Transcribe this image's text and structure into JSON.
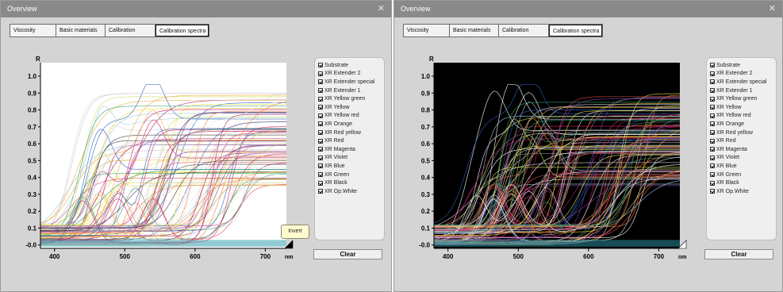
{
  "windows": [
    {
      "title": "Overview",
      "theme": "light",
      "tabs": [
        "Viscosity",
        "Basic materials",
        "Calibration",
        "Calibration spectra"
      ],
      "active_tab": "Calibration spectra",
      "legend_items": [
        "Substrate",
        "XR Extender 2",
        "XR Extender special",
        "XR Extender 1",
        "XR Yellow green",
        "XR Yellow",
        "XR Yellow red",
        "XR Orange",
        "XR Red yellow",
        "XR Red",
        "XR Magenta",
        "XR Violet",
        "XR Blue",
        "XR Green",
        "XR  Black",
        "XR Op.White"
      ],
      "clear_label": "Clear",
      "tooltip": "Invert",
      "close_glyph": "✕"
    },
    {
      "title": "Overview",
      "theme": "dark",
      "tabs": [
        "Viscosity",
        "Basic materials",
        "Calibration",
        "Calibration spectra"
      ],
      "active_tab": "Calibration spectra",
      "legend_items": [
        "Substrate",
        "XR Extender 2",
        "XR Extender special",
        "XR Extender 1",
        "XR Yellow green",
        "XR Yellow",
        "XR Yellow red",
        "XR Orange",
        "XR Red yellow",
        "XR Red",
        "XR Magenta",
        "XR Violet",
        "XR Blue",
        "XR Green",
        "XR  Black",
        "XR Op.White"
      ],
      "clear_label": "Clear",
      "close_glyph": "✕"
    }
  ],
  "chart_data": [
    {
      "type": "line",
      "title": "",
      "ylabel": "R",
      "xlabel": "nm",
      "xlim": [
        380,
        730
      ],
      "ylim": [
        -0.02,
        1.08
      ],
      "x_ticks": [
        "400",
        "500",
        "600",
        "700"
      ],
      "y_ticks": [
        "1.0",
        "0.9",
        "0.8",
        "0.7",
        "0.6",
        "0.5",
        "0.4",
        "0.3",
        "0.2",
        "0.1",
        "-0.0"
      ],
      "background": "#ffffff",
      "series_colors": [
        "#c8c8c8",
        "#d8d8d8",
        "#e0e0e0",
        "#9cc8d8",
        "#d4dc60",
        "#f0e040",
        "#f0b040",
        "#f08040",
        "#e05050",
        "#d02060",
        "#b02070",
        "#8040a0",
        "#3060c0",
        "#30a070",
        "#404040",
        "#f0f0f0"
      ]
    },
    {
      "type": "line",
      "title": "",
      "ylabel": "R",
      "xlabel": "nm",
      "xlim": [
        380,
        730
      ],
      "ylim": [
        -0.02,
        1.08
      ],
      "x_ticks": [
        "400",
        "500",
        "600",
        "700"
      ],
      "y_ticks": [
        "1.0",
        "0.9",
        "0.8",
        "0.7",
        "0.6",
        "0.5",
        "0.4",
        "0.3",
        "0.2",
        "0.1",
        "-0.0"
      ],
      "background": "#000000",
      "series_colors": [
        "#ffffff",
        "#e8e8e8",
        "#d0d0d0",
        "#9cc8d8",
        "#d4dc60",
        "#f0e040",
        "#f0b040",
        "#f08040",
        "#e05050",
        "#d02060",
        "#b02070",
        "#8040a0",
        "#3060c0",
        "#30a070",
        "#808080",
        "#ffffff"
      ]
    }
  ]
}
